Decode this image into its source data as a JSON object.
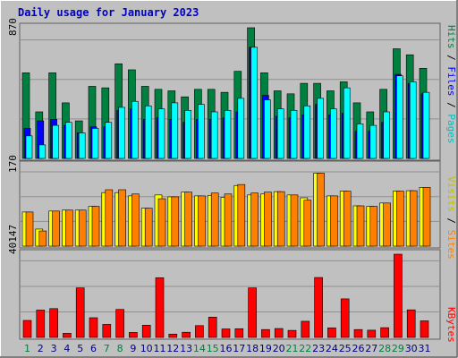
{
  "chart_data": [
    {
      "type": "bar",
      "title": "Daily usage for January 2023",
      "x": [
        1,
        2,
        3,
        4,
        5,
        6,
        7,
        8,
        9,
        10,
        11,
        12,
        13,
        14,
        15,
        16,
        17,
        18,
        19,
        20,
        21,
        22,
        23,
        24,
        25,
        26,
        27,
        28,
        29,
        30,
        31
      ],
      "y_tick_label": "870",
      "ylim": [
        0,
        870
      ],
      "series": [
        {
          "name": "Hits",
          "color": "#008040",
          "values": [
            570,
            310,
            570,
            370,
            250,
            480,
            470,
            630,
            590,
            480,
            460,
            450,
            410,
            460,
            460,
            440,
            580,
            870,
            570,
            450,
            430,
            500,
            500,
            450,
            510,
            370,
            310,
            460,
            730,
            690,
            600
          ]
        },
        {
          "name": "Files",
          "color": "#0000ff",
          "values": [
            200,
            250,
            260,
            220,
            170,
            210,
            210,
            320,
            330,
            260,
            270,
            260,
            240,
            260,
            260,
            270,
            310,
            740,
            420,
            280,
            270,
            290,
            360,
            290,
            300,
            180,
            180,
            240,
            560,
            500,
            430
          ]
        },
        {
          "name": "Pages",
          "color": "#00ffff",
          "values": [
            150,
            90,
            220,
            240,
            170,
            200,
            240,
            340,
            380,
            350,
            330,
            370,
            320,
            360,
            310,
            320,
            400,
            740,
            390,
            330,
            320,
            350,
            400,
            330,
            470,
            230,
            220,
            310,
            550,
            510,
            440
          ]
        }
      ]
    },
    {
      "type": "bar",
      "y_tick_label": "170",
      "ylim": [
        0,
        170
      ],
      "series": [
        {
          "name": "Visits",
          "color": "#ffff00",
          "values": [
            72,
            36,
            74,
            76,
            76,
            84,
            113,
            113,
            106,
            80,
            108,
            104,
            114,
            106,
            107,
            103,
            128,
            108,
            110,
            115,
            108,
            102,
            154,
            106,
            116,
            85,
            84,
            91,
            116,
            117,
            124
          ]
        },
        {
          "name": "Sites",
          "color": "#ff8000",
          "values": [
            72,
            32,
            74,
            76,
            76,
            84,
            119,
            119,
            110,
            80,
            100,
            104,
            114,
            106,
            112,
            110,
            130,
            112,
            114,
            115,
            108,
            97,
            154,
            106,
            116,
            85,
            84,
            91,
            116,
            117,
            124
          ]
        }
      ]
    },
    {
      "type": "bar",
      "y_tick_label": "40147",
      "ylim": [
        0,
        40147
      ],
      "series": [
        {
          "name": "KBytes",
          "color": "#ff0000",
          "values": [
            8200,
            13200,
            13900,
            2000,
            23900,
            9500,
            6300,
            13500,
            2400,
            5900,
            28800,
            1600,
            2500,
            5700,
            9800,
            4100,
            4200,
            23900,
            3800,
            4300,
            3400,
            7800,
            28900,
            4600,
            18600,
            3800,
            3500,
            4700,
            40147,
            13300,
            8000
          ]
        }
      ]
    }
  ],
  "x_tick_highlight_color": "#008040",
  "x_tick_normal_color": "#000080",
  "weekend_days": [
    1,
    7,
    8,
    14,
    15,
    21,
    22,
    28,
    29
  ]
}
